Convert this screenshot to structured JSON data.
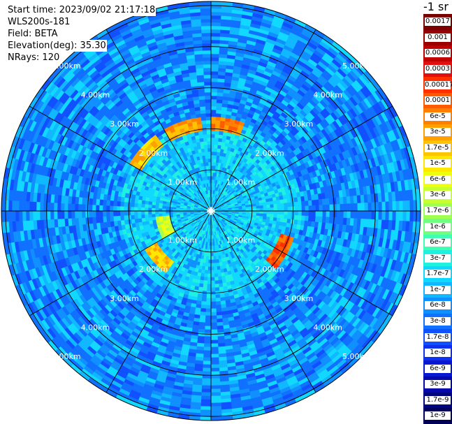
{
  "info": {
    "start_time": "Start time: 2023/09/02 21:17:18",
    "instrument": "WLS200s-181",
    "field": "Field: BETA",
    "elevation": "Elevation(deg): 35.30",
    "nrays": "NRays: 120"
  },
  "unit_label": "-1 sr",
  "colorbar": [
    {
      "label": "0.0017",
      "color": "#7a0000"
    },
    {
      "label": "0.001",
      "color": "#9a0000"
    },
    {
      "label": "0.0006",
      "color": "#c00000"
    },
    {
      "label": "0.0003",
      "color": "#e01010"
    },
    {
      "label": "0.00017",
      "color": "#ff3000"
    },
    {
      "label": "0.0001",
      "color": "#ff5a00"
    },
    {
      "label": "6e-5",
      "color": "#ff8000"
    },
    {
      "label": "3e-5",
      "color": "#ffa000"
    },
    {
      "label": "1.7e-5",
      "color": "#ffc400"
    },
    {
      "label": "1e-5",
      "color": "#ffe800"
    },
    {
      "label": "6e-6",
      "color": "#f0ff10"
    },
    {
      "label": "3e-6",
      "color": "#c8ff30"
    },
    {
      "label": "1.7e-6",
      "color": "#a0ff50"
    },
    {
      "label": "1e-6",
      "color": "#70ff80"
    },
    {
      "label": "6e-7",
      "color": "#40ffb0"
    },
    {
      "label": "3e-7",
      "color": "#20f0e0"
    },
    {
      "label": "1.7e-7",
      "color": "#10d8ff"
    },
    {
      "label": "1e-7",
      "color": "#10b8ff"
    },
    {
      "label": "6e-8",
      "color": "#1090ff"
    },
    {
      "label": "3e-8",
      "color": "#1070ff"
    },
    {
      "label": "1.7e-8",
      "color": "#1050ff"
    },
    {
      "label": "1e-8",
      "color": "#1030f0"
    },
    {
      "label": "6e-9",
      "color": "#0818d0"
    },
    {
      "label": "3e-9",
      "color": "#0408a8"
    },
    {
      "label": "1.7e-9",
      "color": "#000480"
    },
    {
      "label": "1e-9",
      "color": "#00005a"
    }
  ],
  "chart_data": {
    "type": "heatmap",
    "projection": "polar",
    "range_rings_km": [
      1,
      2,
      3,
      4,
      5
    ],
    "ring_labels": [
      "1.00km",
      "2.00km",
      "3.00km",
      "4.00km",
      "5.00km"
    ],
    "max_range_km": 5.1,
    "spokes_deg": [
      0,
      30,
      60,
      90,
      120,
      150,
      180,
      210,
      240,
      270,
      300,
      330
    ],
    "label_bearings_deg": [
      45,
      135,
      225,
      315
    ],
    "background_color": "#1f7cf0",
    "inner_region": {
      "radius_km": 2.2,
      "color": "#28b4f4"
    },
    "hotspots": [
      {
        "azimuth_deg": 10,
        "range_km": 2.1,
        "level": "0.0001"
      },
      {
        "azimuth_deg": 342,
        "range_km": 2.1,
        "level": "6e-5"
      },
      {
        "azimuth_deg": 312,
        "range_km": 2.1,
        "level": "3e-5"
      },
      {
        "azimuth_deg": 120,
        "range_km": 1.95,
        "level": "0.00017"
      },
      {
        "azimuth_deg": 228,
        "range_km": 1.7,
        "level": "3e-5"
      },
      {
        "azimuth_deg": 252,
        "range_km": 1.2,
        "level": "6e-6"
      }
    ]
  }
}
